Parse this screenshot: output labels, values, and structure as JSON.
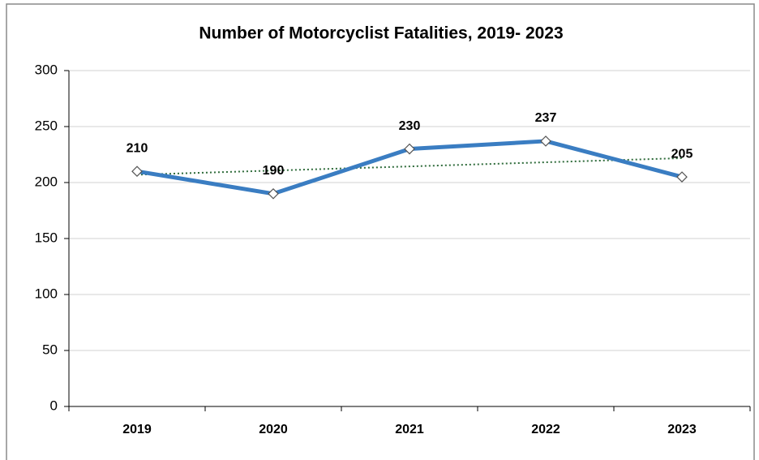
{
  "chart_data": {
    "type": "line",
    "title": "Number of Motorcyclist Fatalities, 2019- 2023",
    "categories": [
      "2019",
      "2020",
      "2021",
      "2022",
      "2023"
    ],
    "values": [
      210,
      190,
      230,
      237,
      205
    ],
    "color": "#3a7dc2",
    "trendline": true,
    "trendline_color": "#2e6b3a",
    "ylim": [
      0,
      300
    ],
    "yticks": [
      0,
      50,
      100,
      150,
      200,
      250,
      300
    ],
    "grid": true
  }
}
